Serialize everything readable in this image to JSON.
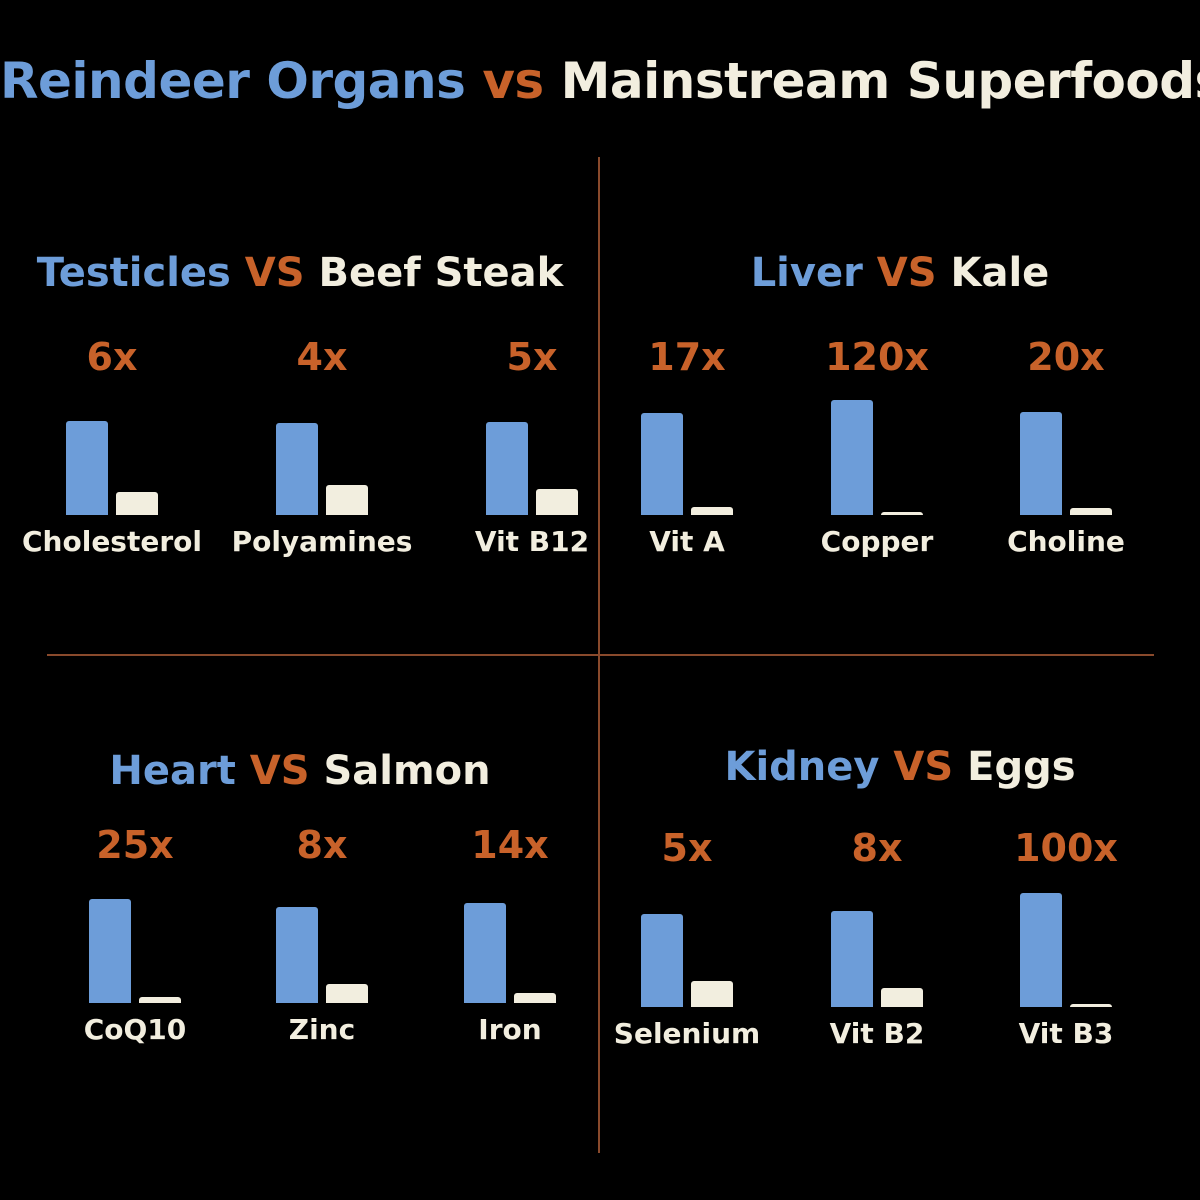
{
  "colors": {
    "organ": "#6d9dd9",
    "vs": "#c8622a",
    "food": "#f2eedf",
    "background": "#000000",
    "divider": "#8a4a2c"
  },
  "title": {
    "organ": "Reindeer Organs",
    "vs": "vs",
    "food": "Mainstream Superfoods"
  },
  "chart_data": [
    {
      "type": "bar",
      "title": {
        "organ": "Testicles",
        "vs": "VS",
        "food": "Beef Steak"
      },
      "categories": [
        "Cholesterol",
        "Polyamines",
        "Vit B12"
      ],
      "ratios": [
        "6x",
        "4x",
        "5x"
      ],
      "series": [
        {
          "name": "Testicles",
          "values": [
            6,
            4,
            5
          ]
        },
        {
          "name": "Beef Steak",
          "values": [
            1,
            1,
            1
          ]
        }
      ]
    },
    {
      "type": "bar",
      "title": {
        "organ": "Liver",
        "vs": "VS",
        "food": "Kale"
      },
      "categories": [
        "Vit A",
        "Copper",
        "Choline"
      ],
      "ratios": [
        "17x",
        "120x",
        "20x"
      ],
      "series": [
        {
          "name": "Liver",
          "values": [
            17,
            120,
            20
          ]
        },
        {
          "name": "Kale",
          "values": [
            1,
            1,
            1
          ]
        }
      ]
    },
    {
      "type": "bar",
      "title": {
        "organ": "Heart",
        "vs": "VS",
        "food": "Salmon"
      },
      "categories": [
        "CoQ10",
        "Zinc",
        "Iron"
      ],
      "ratios": [
        "25x",
        "8x",
        "14x"
      ],
      "series": [
        {
          "name": "Heart",
          "values": [
            25,
            8,
            14
          ]
        },
        {
          "name": "Salmon",
          "values": [
            1,
            1,
            1
          ]
        }
      ]
    },
    {
      "type": "bar",
      "title": {
        "organ": "Kidney",
        "vs": "VS",
        "food": "Eggs"
      },
      "categories": [
        "Selenium",
        "Vit B2",
        "Vit B3"
      ],
      "ratios": [
        "5x",
        "8x",
        "100x"
      ],
      "series": [
        {
          "name": "Kidney",
          "values": [
            5,
            8,
            100
          ]
        },
        {
          "name": "Eggs",
          "values": [
            1,
            1,
            1
          ]
        }
      ]
    }
  ]
}
